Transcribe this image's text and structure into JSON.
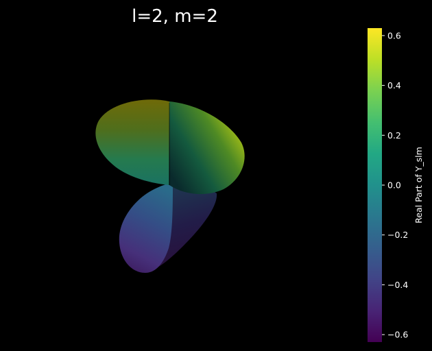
{
  "chart_data": {
    "type": "surface3d",
    "title": "l=2, m=2",
    "surface": "Real part of spherical harmonic Y_lm (l=2, m=2), rendered as a 3D lobed surface colored by value",
    "axes_visible": false,
    "background": "#000000",
    "colormap": "viridis",
    "colorbar": {
      "label": "Real Part of Y_slm",
      "range": [
        -0.63,
        0.63
      ],
      "ticks": [
        -0.6,
        -0.4,
        -0.2,
        0.0,
        0.2,
        0.4,
        0.6
      ],
      "tick_labels": [
        "−0.6",
        "−0.4",
        "−0.2",
        "0.0",
        "0.2",
        "0.4",
        "0.6"
      ],
      "placement": "right"
    }
  }
}
